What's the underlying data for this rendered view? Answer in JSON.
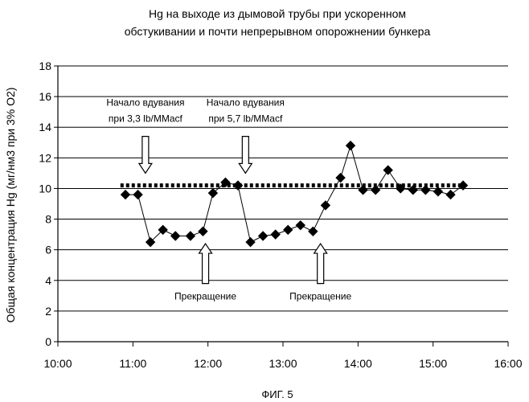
{
  "chart_data": {
    "type": "line",
    "title": [
      "Hg на выходе из дымовой трубы при ускоренном",
      "обстукивании и почти непрерывном опорожнении бункера"
    ],
    "ylabel": "Общая концентрация Hg (мг/нм3 при 3% О2)",
    "xlabel": "",
    "caption": "ФИГ. 5",
    "x_ticks": [
      "10:00",
      "11:00",
      "12:00",
      "13:00",
      "14:00",
      "15:00",
      "16:00"
    ],
    "x_range": [
      "10:00",
      "16:00"
    ],
    "y_ticks": [
      "0",
      "2",
      "4",
      "6",
      "8",
      "10",
      "12",
      "14",
      "16",
      "18"
    ],
    "ylim": [
      0,
      18
    ],
    "grid": "horizontal",
    "series": [
      {
        "marker": "diamond",
        "color": "#000000",
        "points": [
          [
            "10:54",
            9.6
          ],
          [
            "11:04",
            9.6
          ],
          [
            "11:14",
            6.5
          ],
          [
            "11:24",
            7.3
          ],
          [
            "11:34",
            6.9
          ],
          [
            "11:46",
            6.9
          ],
          [
            "11:56",
            7.2
          ],
          [
            "12:04",
            9.7
          ],
          [
            "12:14",
            10.4
          ],
          [
            "12:24",
            10.2
          ],
          [
            "12:34",
            6.5
          ],
          [
            "12:44",
            6.9
          ],
          [
            "12:54",
            7.0
          ],
          [
            "13:04",
            7.3
          ],
          [
            "13:14",
            7.6
          ],
          [
            "13:24",
            7.2
          ],
          [
            "13:34",
            8.9
          ],
          [
            "13:46",
            10.7
          ],
          [
            "13:54",
            12.8
          ],
          [
            "14:04",
            9.9
          ],
          [
            "14:14",
            9.9
          ],
          [
            "14:24",
            11.2
          ],
          [
            "14:34",
            10.0
          ],
          [
            "14:44",
            9.9
          ],
          [
            "14:54",
            9.9
          ],
          [
            "15:04",
            9.8
          ],
          [
            "15:14",
            9.6
          ],
          [
            "15:24",
            10.2
          ]
        ]
      }
    ],
    "reference_line": {
      "style": "dotted",
      "color": "#000000",
      "y": 10.2,
      "x_range": [
        "10:50",
        "15:25"
      ]
    },
    "annotations": [
      {
        "lines": [
          "Начало вдувания",
          "при 3,3 lb/MMacf"
        ],
        "time": "11:10",
        "direction": "down",
        "arrow_from": 13.4,
        "arrow_to": 11.0
      },
      {
        "lines": [
          "Начало вдувания",
          "при 5,7 lb/MMacf"
        ],
        "time": "12:30",
        "direction": "down",
        "arrow_from": 13.4,
        "arrow_to": 11.0
      },
      {
        "lines": [
          "Прекращение"
        ],
        "time": "11:58",
        "direction": "up",
        "arrow_from": 3.8,
        "arrow_to": 6.4
      },
      {
        "lines": [
          "Прекращение"
        ],
        "time": "13:30",
        "direction": "up",
        "arrow_from": 3.8,
        "arrow_to": 6.4
      }
    ]
  }
}
